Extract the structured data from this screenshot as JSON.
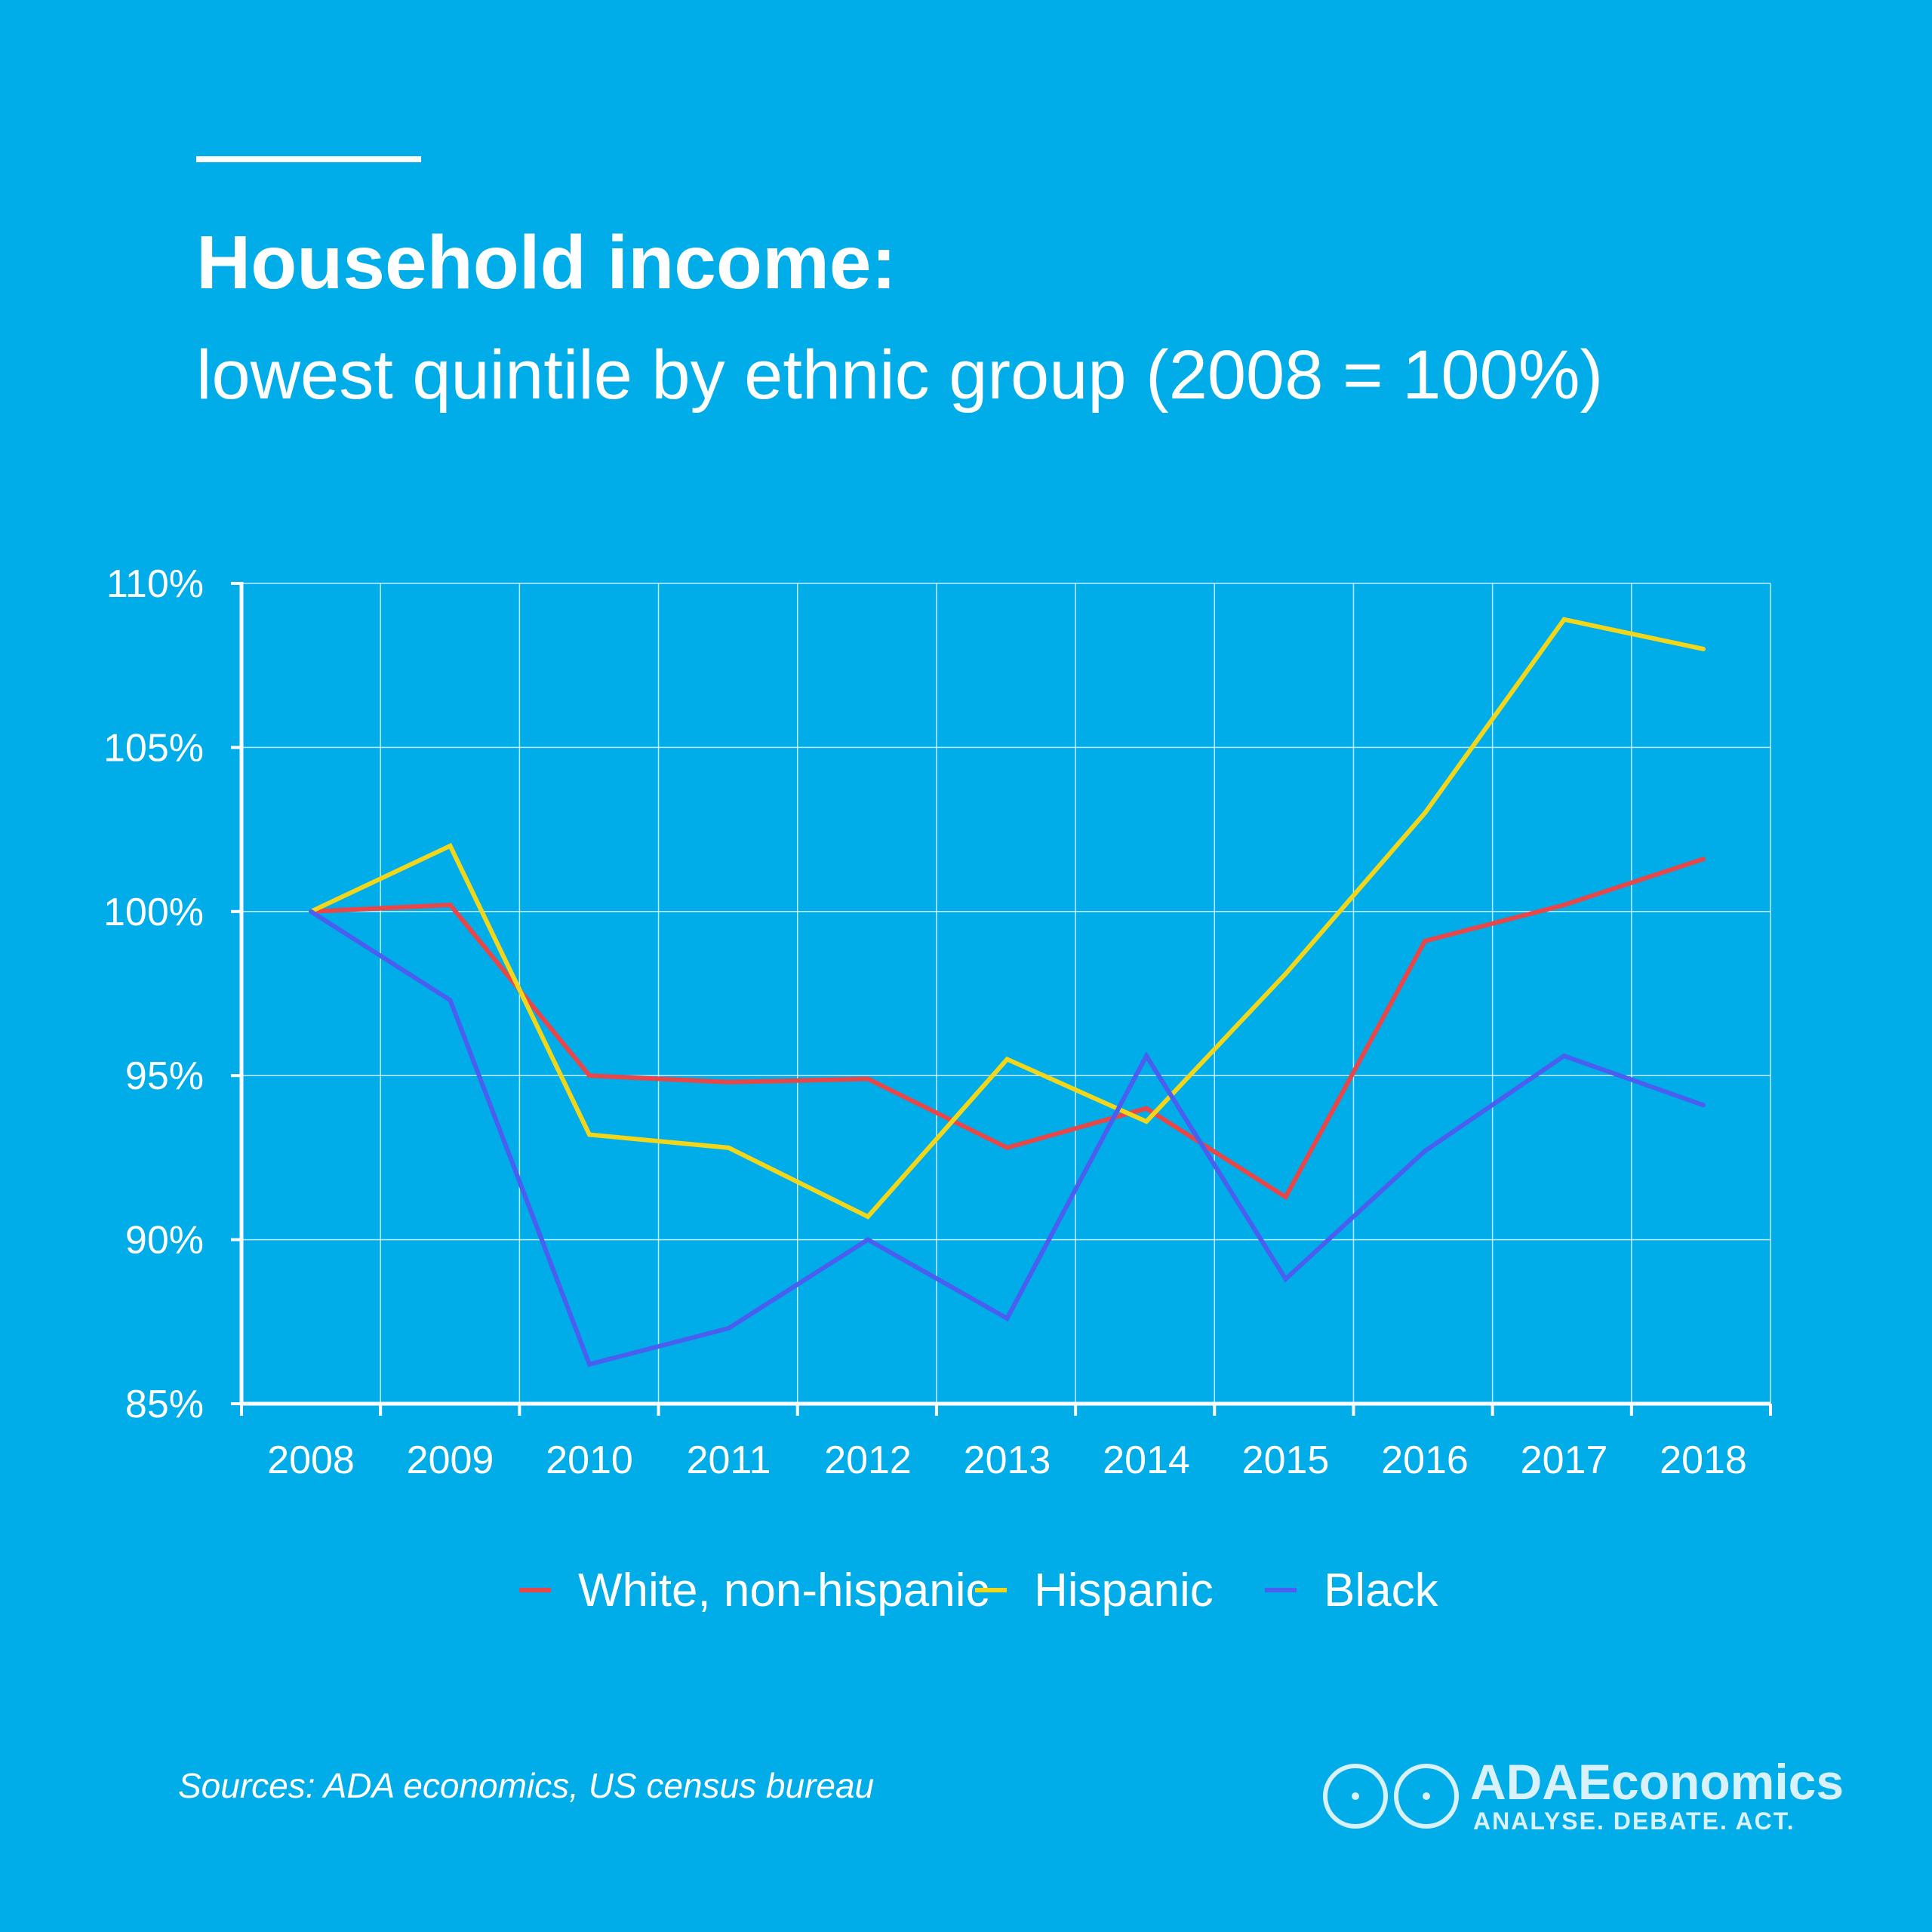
{
  "header": {
    "title": "Household income:",
    "subtitle": "lowest quintile by ethnic group (2008 = 100%)"
  },
  "chart_data": {
    "type": "line",
    "x": [
      "2008",
      "2009",
      "2010",
      "2011",
      "2012",
      "2013",
      "2014",
      "2015",
      "2016",
      "2017",
      "2018"
    ],
    "yticks": [
      "85%",
      "90%",
      "95%",
      "100%",
      "105%",
      "110%"
    ],
    "ylim": [
      85,
      110
    ],
    "grid": true,
    "legend_position": "bottom",
    "series": [
      {
        "name": "White, non-hispanic",
        "color": "#e8474a",
        "values": [
          100,
          100.2,
          95.0,
          94.8,
          94.9,
          92.8,
          94.0,
          91.3,
          99.1,
          100.2,
          101.6
        ]
      },
      {
        "name": "Hispanic",
        "color": "#f2d61c",
        "values": [
          100,
          102.0,
          93.2,
          92.8,
          90.7,
          95.5,
          93.6,
          98.1,
          103.0,
          108.9,
          108.0
        ]
      },
      {
        "name": "Black",
        "color": "#4a5ef0",
        "values": [
          100,
          97.3,
          86.2,
          87.3,
          90.0,
          87.6,
          95.6,
          88.8,
          92.7,
          95.6,
          94.1
        ]
      }
    ]
  },
  "footer": {
    "source": "Sources: ADA economics, US census bureau",
    "brand_name": "ADAEconomics",
    "brand_tagline": "ANALYSE. DEBATE. ACT."
  }
}
